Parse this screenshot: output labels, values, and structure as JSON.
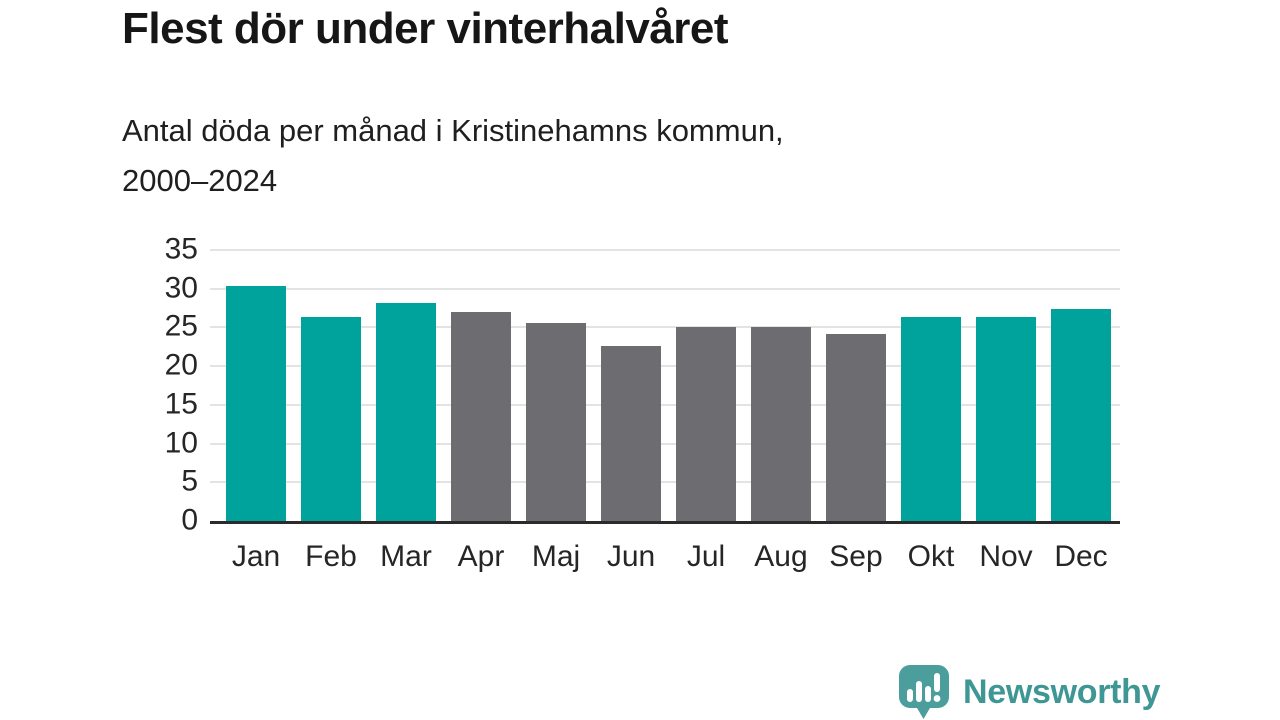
{
  "chart_data": {
    "type": "bar",
    "title": "Flest dör under vinterhalvåret",
    "subtitle_lines": [
      "Antal döda per månad i Kristinehamns kommun,",
      "2000–2024"
    ],
    "categories": [
      "Jan",
      "Feb",
      "Mar",
      "Apr",
      "Maj",
      "Jun",
      "Jul",
      "Aug",
      "Sep",
      "Okt",
      "Nov",
      "Dec"
    ],
    "values": [
      30.4,
      26.4,
      28.2,
      27.0,
      25.6,
      22.6,
      25.1,
      25.1,
      24.1,
      26.4,
      26.4,
      27.4
    ],
    "highlighted": [
      true,
      true,
      true,
      false,
      false,
      false,
      false,
      false,
      false,
      true,
      true,
      true
    ],
    "colors": {
      "highlight": "#00a39b",
      "default": "#6d6c71"
    },
    "xlabel": "",
    "ylabel": "",
    "ylim": [
      0,
      35
    ],
    "yticks": [
      0,
      5,
      10,
      15,
      20,
      25,
      30,
      35
    ],
    "grid": true,
    "legend": "none"
  },
  "branding": {
    "logo_text": "Newsworthy",
    "logo_text_color": "#3e9794",
    "logo_icon_color": "#4c9e9c"
  }
}
